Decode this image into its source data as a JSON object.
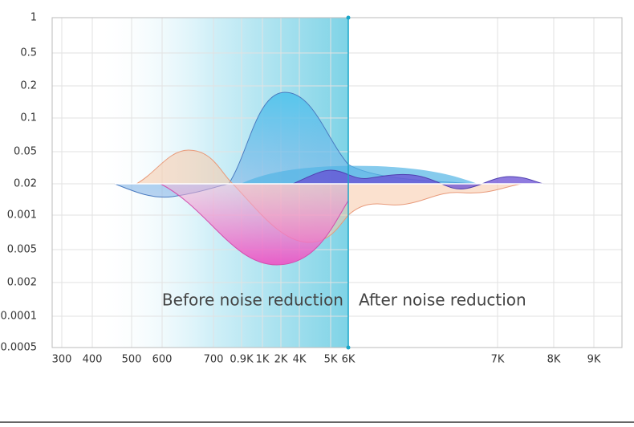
{
  "y_labels": [
    "1",
    "0.5",
    "0.2",
    "0.1",
    "0.05",
    "0.02",
    "0.001",
    "0.005",
    "0.002",
    "0.0001",
    "0.0005"
  ],
  "x_labels": [
    "300",
    "400",
    "500",
    "600",
    "700",
    "0.9K",
    "1K",
    "2K",
    "4K",
    "5K",
    "6K",
    "7K",
    "8K",
    "9K"
  ],
  "labels": {
    "before": "Before noise reduction",
    "after": "After noise reduction"
  }
}
